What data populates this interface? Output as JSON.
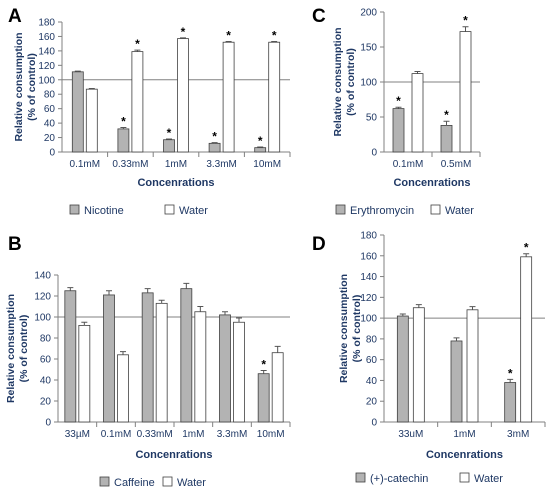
{
  "colors": {
    "grey_bar": "#b3b3b3",
    "white_bar": "#ffffff",
    "bar_stroke": "#404040",
    "axis_text": "#1f3864"
  },
  "chart_data": [
    {
      "id": "A",
      "panel_label": "A",
      "type": "bar",
      "categories": [
        "0.1mM",
        "0.33mM",
        "1mM",
        "3.3mM",
        "10mM"
      ],
      "series": [
        {
          "name": "Nicotine",
          "values": [
            111,
            32,
            17,
            12,
            6
          ],
          "errors": [
            1,
            2,
            1,
            1,
            1
          ]
        },
        {
          "name": "Water",
          "values": [
            87,
            139,
            157,
            152,
            152
          ],
          "errors": [
            1,
            2,
            1,
            1,
            1
          ]
        }
      ],
      "significance": [
        [
          false,
          true,
          true,
          true,
          true
        ],
        [
          false,
          true,
          true,
          true,
          true
        ]
      ],
      "ylim": [
        0,
        180
      ],
      "yticks": [
        0,
        20,
        40,
        60,
        80,
        100,
        120,
        140,
        160,
        180
      ],
      "reference_line": 100,
      "ylabel": [
        "Relative consumption",
        "(% of control)"
      ],
      "xlabel": "Concenrations",
      "legend_position": "bottom"
    },
    {
      "id": "C",
      "panel_label": "C",
      "type": "bar",
      "categories": [
        "0.1mM",
        "0.5mM"
      ],
      "series": [
        {
          "name": "Erythromycin",
          "values": [
            62,
            38
          ],
          "errors": [
            2,
            6
          ]
        },
        {
          "name": "Water",
          "values": [
            112,
            172
          ],
          "errors": [
            3,
            7
          ]
        }
      ],
      "significance": [
        [
          true,
          true
        ],
        [
          false,
          true
        ]
      ],
      "ylim": [
        0,
        200
      ],
      "yticks": [
        0,
        50,
        100,
        150,
        200
      ],
      "reference_line": 100,
      "ylabel": [
        "Relative consumption",
        "(% of control)"
      ],
      "xlabel": "Concenrations",
      "legend_position": "bottom"
    },
    {
      "id": "B",
      "panel_label": "B",
      "type": "bar",
      "categories": [
        "33µM",
        "0.1mM",
        "0.33mM",
        "1mM",
        "3.3mM",
        "10mM"
      ],
      "series": [
        {
          "name": "Caffeine",
          "values": [
            125,
            121,
            123,
            127,
            102,
            46
          ],
          "errors": [
            3,
            4,
            4,
            5,
            3,
            3
          ]
        },
        {
          "name": "Water",
          "values": [
            92,
            64,
            113,
            105,
            95,
            66
          ],
          "errors": [
            3,
            3,
            3,
            5,
            4,
            6
          ]
        }
      ],
      "significance": [
        [
          false,
          false,
          false,
          false,
          false,
          true
        ],
        [
          false,
          false,
          false,
          false,
          false,
          false
        ]
      ],
      "ylim": [
        0,
        140
      ],
      "yticks": [
        0,
        20,
        40,
        60,
        80,
        100,
        120,
        140
      ],
      "reference_line": 100,
      "ylabel": [
        "Relative consumption",
        "(% of control)"
      ],
      "xlabel": "Concenrations",
      "legend_position": "bottom"
    },
    {
      "id": "D",
      "panel_label": "D",
      "type": "bar",
      "categories": [
        "33uM",
        "1mM",
        "3mM"
      ],
      "series": [
        {
          "name": "(+)-catechin",
          "values": [
            102,
            78,
            38
          ],
          "errors": [
            2,
            3,
            3
          ]
        },
        {
          "name": "Water",
          "values": [
            110,
            108,
            159
          ],
          "errors": [
            3,
            3,
            3
          ]
        }
      ],
      "significance": [
        [
          false,
          false,
          true
        ],
        [
          false,
          false,
          true
        ]
      ],
      "ylim": [
        0,
        180
      ],
      "yticks": [
        0,
        20,
        40,
        60,
        80,
        100,
        120,
        140,
        160,
        180
      ],
      "reference_line": 100,
      "ylabel": [
        "Relative consumption",
        "(% of control)"
      ],
      "xlabel": "Concenrations",
      "legend_position": "bottom"
    }
  ]
}
